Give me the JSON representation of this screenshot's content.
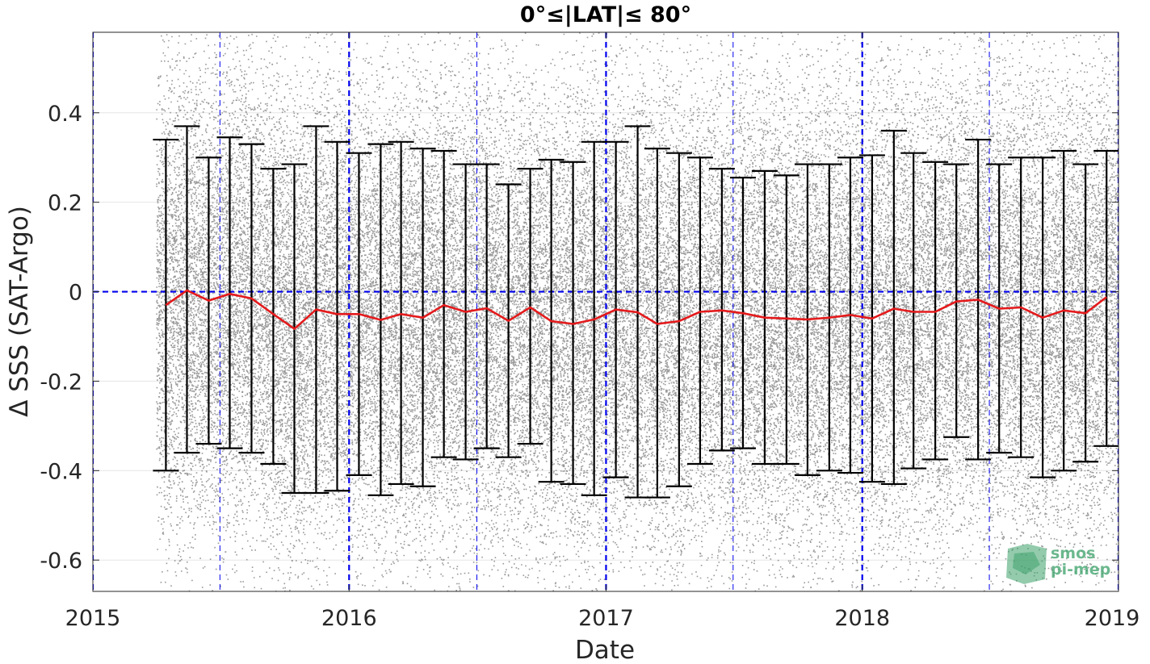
{
  "chart_data": {
    "type": "scatter",
    "title": "0°≤|LAT|≤ 80°",
    "xlabel": "Date",
    "ylabel": "Δ SSS (SAT-Argo)",
    "xlim": [
      "2015-01-01",
      "2019-01-01"
    ],
    "ylim": [
      -0.67,
      0.58
    ],
    "x_ticks": [
      "2015-01-01",
      "2016-01-01",
      "2017-01-01",
      "2018-01-01",
      "2019-01-01"
    ],
    "x_tick_labels": [
      "2015",
      "2016",
      "2017",
      "2018",
      "2019"
    ],
    "y_ticks": [
      -0.6,
      -0.4,
      -0.2,
      0,
      0.2,
      0.4
    ],
    "y_tick_labels": [
      "-0.6",
      "-0.4",
      "-0.2",
      "0",
      "0.2",
      "0.4"
    ],
    "grid": true,
    "colors": {
      "scatter": "#808080",
      "errorbar": "#000000",
      "mean_line": "#e41a1c",
      "reference_lines": "#0000ee",
      "watermark": "#3aa068"
    },
    "scatter_points": {
      "name": "individual ΔSSS match-ups",
      "x_start": "2015-04-01",
      "x_end": "2019-01-01",
      "y_range_shown": [
        -0.67,
        0.58
      ],
      "note": "dense cloud, approximately normally distributed around the monthly mean"
    },
    "reference_lines": {
      "y_zero": 0,
      "year_boundaries": [
        "2015-01-01",
        "2016-01-01",
        "2017-01-01",
        "2018-01-01",
        "2019-01-01"
      ],
      "mid_years": [
        "2015-07-01",
        "2016-07-01",
        "2017-07-01",
        "2018-07-01"
      ]
    },
    "series": [
      {
        "name": "monthly mean",
        "x": [
          "2015-04-15",
          "2015-05-15",
          "2015-06-15",
          "2015-07-15",
          "2015-08-15",
          "2015-09-15",
          "2015-10-15",
          "2015-11-15",
          "2015-12-15",
          "2016-01-15",
          "2016-02-15",
          "2016-03-15",
          "2016-04-15",
          "2016-05-15",
          "2016-06-15",
          "2016-07-15",
          "2016-08-15",
          "2016-09-15",
          "2016-10-15",
          "2016-11-15",
          "2016-12-15",
          "2017-01-15",
          "2017-02-15",
          "2017-03-15",
          "2017-04-15",
          "2017-05-15",
          "2017-06-15",
          "2017-07-15",
          "2017-08-15",
          "2017-09-15",
          "2017-10-15",
          "2017-11-15",
          "2017-12-15",
          "2018-01-15",
          "2018-02-15",
          "2018-03-15",
          "2018-04-15",
          "2018-05-15",
          "2018-06-15",
          "2018-07-15",
          "2018-08-15",
          "2018-09-15",
          "2018-10-15",
          "2018-11-15",
          "2018-12-15"
        ],
        "mean": [
          -0.03,
          0.003,
          -0.02,
          -0.005,
          -0.015,
          -0.05,
          -0.083,
          -0.04,
          -0.05,
          -0.05,
          -0.063,
          -0.05,
          -0.058,
          -0.03,
          -0.045,
          -0.037,
          -0.065,
          -0.035,
          -0.066,
          -0.072,
          -0.062,
          -0.04,
          -0.046,
          -0.072,
          -0.066,
          -0.045,
          -0.042,
          -0.048,
          -0.058,
          -0.06,
          -0.062,
          -0.058,
          -0.052,
          -0.06,
          -0.038,
          -0.045,
          -0.045,
          -0.022,
          -0.018,
          -0.038,
          -0.035,
          -0.058,
          -0.042,
          -0.048,
          -0.012
        ],
        "upper": [
          0.34,
          0.37,
          0.3,
          0.345,
          0.33,
          0.275,
          0.285,
          0.37,
          0.335,
          0.31,
          0.33,
          0.335,
          0.32,
          0.315,
          0.285,
          0.285,
          0.24,
          0.275,
          0.295,
          0.29,
          0.335,
          0.335,
          0.37,
          0.32,
          0.31,
          0.3,
          0.275,
          0.255,
          0.27,
          0.26,
          0.285,
          0.285,
          0.3,
          0.305,
          0.36,
          0.31,
          0.29,
          0.285,
          0.34,
          0.285,
          0.3,
          0.3,
          0.315,
          0.285,
          0.315
        ],
        "lower": [
          -0.4,
          -0.36,
          -0.34,
          -0.35,
          -0.36,
          -0.385,
          -0.45,
          -0.45,
          -0.445,
          -0.41,
          -0.455,
          -0.43,
          -0.435,
          -0.37,
          -0.375,
          -0.35,
          -0.37,
          -0.34,
          -0.425,
          -0.43,
          -0.455,
          -0.415,
          -0.46,
          -0.46,
          -0.435,
          -0.385,
          -0.355,
          -0.35,
          -0.385,
          -0.385,
          -0.41,
          -0.4,
          -0.405,
          -0.425,
          -0.43,
          -0.395,
          -0.375,
          -0.325,
          -0.375,
          -0.36,
          -0.37,
          -0.415,
          -0.4,
          -0.38,
          -0.345
        ]
      }
    ],
    "watermark": {
      "line1": "smos",
      "line2": "pi-mep"
    }
  }
}
